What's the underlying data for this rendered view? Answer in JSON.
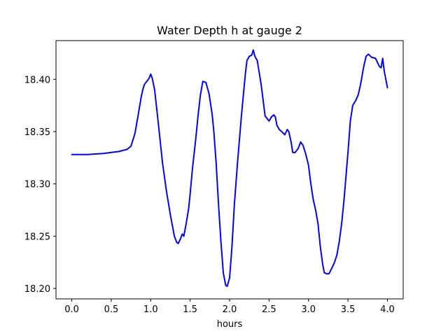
{
  "chart_data": {
    "type": "line",
    "title": "Water Depth h at gauge 2",
    "xlabel": "hours",
    "ylabel": "",
    "xlim": [
      -0.2,
      4.2
    ],
    "ylim": [
      18.19,
      18.437
    ],
    "x_ticks": [
      0.0,
      0.5,
      1.0,
      1.5,
      2.0,
      2.5,
      3.0,
      3.5,
      4.0
    ],
    "x_tick_labels": [
      "0.0",
      "0.5",
      "1.0",
      "1.5",
      "2.0",
      "2.5",
      "3.0",
      "3.5",
      "4.0"
    ],
    "y_ticks": [
      18.2,
      18.25,
      18.3,
      18.35,
      18.4
    ],
    "y_tick_labels": [
      "18.20",
      "18.25",
      "18.30",
      "18.35",
      "18.40"
    ],
    "grid": false,
    "legend": "none",
    "series": [
      {
        "color": "#0000ff",
        "x": [
          0.0,
          0.2,
          0.4,
          0.6,
          0.7,
          0.75,
          0.8,
          0.84,
          0.88,
          0.9,
          0.92,
          0.95,
          0.98,
          1.0,
          1.02,
          1.05,
          1.1,
          1.15,
          1.2,
          1.25,
          1.3,
          1.33,
          1.35,
          1.38,
          1.4,
          1.42,
          1.45,
          1.48,
          1.5,
          1.53,
          1.57,
          1.6,
          1.63,
          1.66,
          1.7,
          1.74,
          1.78,
          1.8,
          1.83,
          1.86,
          1.89,
          1.92,
          1.95,
          1.97,
          2.0,
          2.03,
          2.06,
          2.1,
          2.15,
          2.2,
          2.22,
          2.25,
          2.28,
          2.3,
          2.32,
          2.35,
          2.4,
          2.45,
          2.5,
          2.53,
          2.56,
          2.58,
          2.6,
          2.63,
          2.66,
          2.7,
          2.73,
          2.75,
          2.78,
          2.8,
          2.83,
          2.87,
          2.9,
          2.93,
          2.96,
          3.0,
          3.03,
          3.06,
          3.09,
          3.12,
          3.15,
          3.18,
          3.2,
          3.23,
          3.26,
          3.3,
          3.33,
          3.36,
          3.39,
          3.42,
          3.45,
          3.5,
          3.53,
          3.56,
          3.6,
          3.63,
          3.66,
          3.7,
          3.73,
          3.76,
          3.8,
          3.85,
          3.9,
          3.92,
          3.94,
          3.96,
          3.98,
          4.0
        ],
        "y": [
          18.328,
          18.328,
          18.329,
          18.331,
          18.333,
          18.336,
          18.348,
          18.365,
          18.383,
          18.39,
          18.395,
          18.398,
          18.401,
          18.405,
          18.401,
          18.39,
          18.356,
          18.32,
          18.293,
          18.27,
          18.25,
          18.244,
          18.243,
          18.248,
          18.252,
          18.25,
          18.262,
          18.276,
          18.29,
          18.315,
          18.342,
          18.365,
          18.385,
          18.398,
          18.397,
          18.386,
          18.366,
          18.35,
          18.32,
          18.28,
          18.245,
          18.215,
          18.203,
          18.202,
          18.21,
          18.24,
          18.28,
          18.32,
          18.365,
          18.405,
          18.418,
          18.422,
          18.423,
          18.428,
          18.422,
          18.418,
          18.395,
          18.365,
          18.36,
          18.364,
          18.366,
          18.364,
          18.356,
          18.352,
          18.35,
          18.347,
          18.352,
          18.35,
          18.34,
          18.33,
          18.33,
          18.334,
          18.34,
          18.337,
          18.33,
          18.318,
          18.3,
          18.285,
          18.275,
          18.262,
          18.24,
          18.223,
          18.215,
          18.214,
          18.214,
          18.22,
          18.225,
          18.232,
          18.245,
          18.262,
          18.285,
          18.33,
          18.36,
          18.375,
          18.38,
          18.385,
          18.395,
          18.412,
          18.422,
          18.424,
          18.421,
          18.42,
          18.412,
          18.411,
          18.42,
          18.408,
          18.4,
          18.392
        ]
      }
    ]
  }
}
